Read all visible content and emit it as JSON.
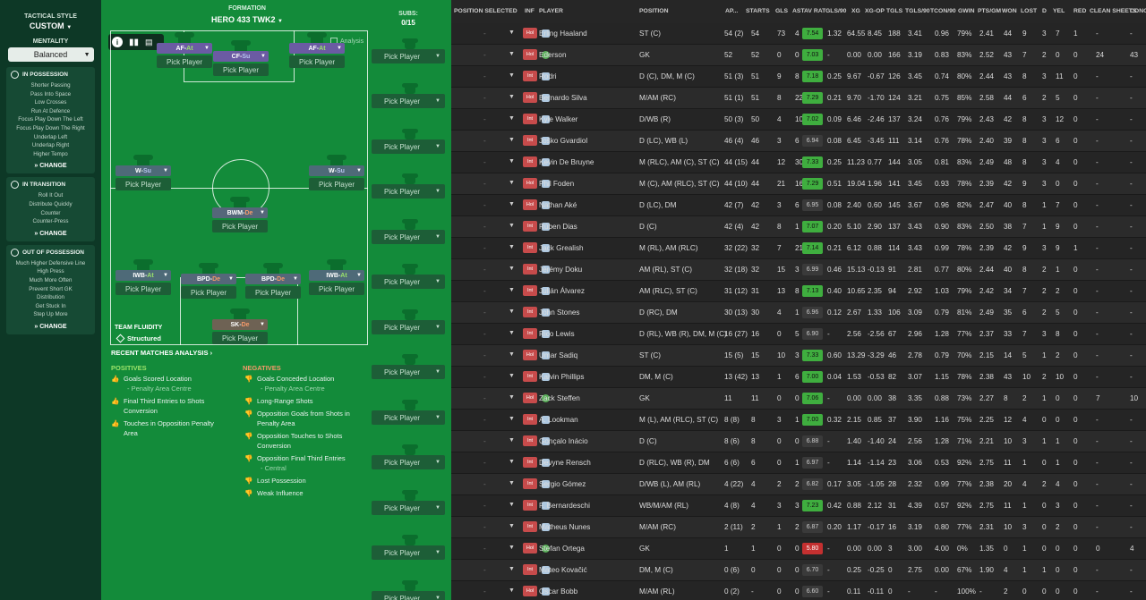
{
  "left": {
    "tactical_style_label": "TACTICAL STYLE",
    "tactical_style_value": "CUSTOM",
    "mentality_label": "MENTALITY",
    "mentality_value": "Balanced",
    "in_possession": {
      "title": "IN POSSESSION",
      "items": [
        "Shorter Passing",
        "Pass Into Space",
        "Low Crosses",
        "Run At Defence",
        "Focus Play Down The Left",
        "Focus Play Down The Right",
        "Underlap Left",
        "Underlap Right",
        "Higher Tempo"
      ],
      "change": "CHANGE"
    },
    "in_transition": {
      "title": "IN TRANSITION",
      "items": [
        "Roll It Out",
        "Distribute Quickly",
        "Counter",
        "Counter-Press"
      ],
      "change": "CHANGE"
    },
    "out_of_possession": {
      "title": "OUT OF POSSESSION",
      "items": [
        "Much Higher Defensive Line",
        "High Press",
        "Much More Often",
        "Prevent Short GK",
        "Distribution",
        "Get Stuck In",
        "Step Up More"
      ],
      "change": "CHANGE"
    }
  },
  "mid": {
    "formation_label": "FORMATION",
    "formation_value": "HERO 433 TWK2",
    "subs_label": "SUBS:",
    "subs_value": "0/15",
    "analysis_label": "Analysis",
    "pick_player": "Pick Player",
    "positions": [
      {
        "role": "AF",
        "duty": "At"
      },
      {
        "role": "CF",
        "duty": "Su"
      },
      {
        "role": "AF",
        "duty": "At"
      },
      {
        "role": "W",
        "duty": "Su"
      },
      {
        "role": "W",
        "duty": "Su"
      },
      {
        "role": "BWM",
        "duty": "De"
      },
      {
        "role": "IWB",
        "duty": "At"
      },
      {
        "role": "BPD",
        "duty": "De"
      },
      {
        "role": "BPD",
        "duty": "De"
      },
      {
        "role": "IWB",
        "duty": "At"
      },
      {
        "role": "SK",
        "duty": "De"
      }
    ],
    "team_fluidity_label": "TEAM FLUIDITY",
    "team_fluidity_value": "Structured",
    "recent_label": "RECENT MATCHES ANALYSIS",
    "positives_label": "POSITIVES",
    "negatives_label": "NEGATIVES",
    "positives": [
      {
        "text": "Goals Scored Location",
        "sub": "- Penalty Area Centre"
      },
      {
        "text": "Final Third Entries to Shots Conversion",
        "sub": ""
      },
      {
        "text": "Touches in Opposition Penalty Area",
        "sub": ""
      }
    ],
    "negatives": [
      {
        "text": "Goals Conceded Location",
        "sub": "- Penalty Area Centre"
      },
      {
        "text": "Long-Range Shots",
        "sub": ""
      },
      {
        "text": "Opposition Goals from Shots in Penalty Area",
        "sub": ""
      },
      {
        "text": "Opposition Touches to Shots Conversion",
        "sub": ""
      },
      {
        "text": "Opposition Final Third Entries",
        "sub": "- Central"
      },
      {
        "text": "Lost Possession",
        "sub": ""
      },
      {
        "text": "Weak Influence",
        "sub": ""
      }
    ]
  },
  "table": {
    "headers": [
      "POSITION SELECTED",
      "INF",
      "PLAYER",
      "POSITION",
      "AP...",
      "STARTS",
      "GLS",
      "AST",
      "AV RAT",
      "GLS/90",
      "XG",
      "XG-OP",
      "TGLS",
      "TGLS/90",
      "TCON/90",
      "GWIN",
      "PTS/GM",
      "WON",
      "LOST",
      "D",
      "YEL",
      "RED",
      "CLEAN SHEETS",
      "CONC"
    ],
    "rows": [
      {
        "inf": "Hol",
        "name": "Erling Haaland",
        "pos": "ST (C)",
        "ap": "54 (2)",
        "starts": "54",
        "gls": "73",
        "ast": "4",
        "avr": "7.54",
        "gls90": "1.32",
        "xg": "64.55",
        "xgop": "8.45",
        "tgls": "188",
        "tgls90": "3.41",
        "tcon": "0.96",
        "gwin": "79%",
        "pts": "2.41",
        "won": "44",
        "lost": "9",
        "d": "3",
        "yel": "7",
        "red": "1",
        "cs": "-",
        "conc": "-"
      },
      {
        "inf": "Hol",
        "name": "Ederson",
        "pos": "GK",
        "ap": "52",
        "starts": "52",
        "gls": "0",
        "ast": "0",
        "avr": "7.03",
        "gls90": "-",
        "xg": "0.00",
        "xgop": "0.00",
        "tgls": "166",
        "tgls90": "3.19",
        "tcon": "0.83",
        "gwin": "83%",
        "pts": "2.52",
        "won": "43",
        "lost": "7",
        "d": "2",
        "yel": "0",
        "red": "0",
        "cs": "24",
        "conc": "43"
      },
      {
        "inf": "Int",
        "name": "Rodri",
        "pos": "D (C), DM, M (C)",
        "ap": "51 (3)",
        "starts": "51",
        "gls": "9",
        "ast": "8",
        "avr": "7.18",
        "gls90": "0.25",
        "xg": "9.67",
        "xgop": "-0.67",
        "tgls": "126",
        "tgls90": "3.45",
        "tcon": "0.74",
        "gwin": "80%",
        "pts": "2.44",
        "won": "43",
        "lost": "8",
        "d": "3",
        "yel": "11",
        "red": "0",
        "cs": "-",
        "conc": "-"
      },
      {
        "inf": "Hol",
        "name": "Bernardo Silva",
        "pos": "M/AM (RC)",
        "ap": "51 (1)",
        "starts": "51",
        "gls": "8",
        "ast": "22",
        "avr": "7.29",
        "gls90": "0.21",
        "xg": "9.70",
        "xgop": "-1.70",
        "tgls": "124",
        "tgls90": "3.21",
        "tcon": "0.75",
        "gwin": "85%",
        "pts": "2.58",
        "won": "44",
        "lost": "6",
        "d": "2",
        "yel": "5",
        "red": "0",
        "cs": "-",
        "conc": "-"
      },
      {
        "inf": "Int",
        "name": "Kyle Walker",
        "pos": "D/WB (R)",
        "ap": "50 (3)",
        "starts": "50",
        "gls": "4",
        "ast": "10",
        "avr": "7.02",
        "gls90": "0.09",
        "xg": "6.46",
        "xgop": "-2.46",
        "tgls": "137",
        "tgls90": "3.24",
        "tcon": "0.76",
        "gwin": "79%",
        "pts": "2.43",
        "won": "42",
        "lost": "8",
        "d": "3",
        "yel": "12",
        "red": "0",
        "cs": "-",
        "conc": "-"
      },
      {
        "inf": "Int",
        "name": "Joško Gvardiol",
        "pos": "D (LC), WB (L)",
        "ap": "46 (4)",
        "starts": "46",
        "gls": "3",
        "ast": "6",
        "avr": "6.94",
        "gls90": "0.08",
        "xg": "6.45",
        "xgop": "-3.45",
        "tgls": "111",
        "tgls90": "3.14",
        "tcon": "0.76",
        "gwin": "78%",
        "pts": "2.40",
        "won": "39",
        "lost": "8",
        "d": "3",
        "yel": "6",
        "red": "0",
        "cs": "-",
        "conc": "-"
      },
      {
        "inf": "Int",
        "name": "Kevin De Bruyne",
        "pos": "M (RLC), AM (C), ST (C)",
        "ap": "44 (15)",
        "starts": "44",
        "gls": "12",
        "ast": "30",
        "avr": "7.33",
        "gls90": "0.25",
        "xg": "11.23",
        "xgop": "0.77",
        "tgls": "144",
        "tgls90": "3.05",
        "tcon": "0.81",
        "gwin": "83%",
        "pts": "2.49",
        "won": "48",
        "lost": "8",
        "d": "3",
        "yel": "4",
        "red": "0",
        "cs": "-",
        "conc": "-"
      },
      {
        "inf": "Hol",
        "name": "Phil Foden",
        "pos": "M (C), AM (RLC), ST (C)",
        "ap": "44 (10)",
        "starts": "44",
        "gls": "21",
        "ast": "16",
        "avr": "7.29",
        "gls90": "0.51",
        "xg": "19.04",
        "xgop": "1.96",
        "tgls": "141",
        "tgls90": "3.45",
        "tcon": "0.93",
        "gwin": "78%",
        "pts": "2.39",
        "won": "42",
        "lost": "9",
        "d": "3",
        "yel": "0",
        "red": "0",
        "cs": "-",
        "conc": "-"
      },
      {
        "inf": "Hol",
        "name": "Nathan Aké",
        "pos": "D (LC), DM",
        "ap": "42 (7)",
        "starts": "42",
        "gls": "3",
        "ast": "6",
        "avr": "6.95",
        "gls90": "0.08",
        "xg": "2.40",
        "xgop": "0.60",
        "tgls": "145",
        "tgls90": "3.67",
        "tcon": "0.96",
        "gwin": "82%",
        "pts": "2.47",
        "won": "40",
        "lost": "8",
        "d": "1",
        "yel": "7",
        "red": "0",
        "cs": "-",
        "conc": "-"
      },
      {
        "inf": "Int",
        "name": "Rúben Dias",
        "pos": "D (C)",
        "ap": "42 (4)",
        "starts": "42",
        "gls": "8",
        "ast": "1",
        "avr": "7.07",
        "gls90": "0.20",
        "xg": "5.10",
        "xgop": "2.90",
        "tgls": "137",
        "tgls90": "3.43",
        "tcon": "0.90",
        "gwin": "83%",
        "pts": "2.50",
        "won": "38",
        "lost": "7",
        "d": "1",
        "yel": "9",
        "red": "0",
        "cs": "-",
        "conc": "-"
      },
      {
        "inf": "Int",
        "name": "Jack Grealish",
        "pos": "M (RL), AM (RLC)",
        "ap": "32 (22)",
        "starts": "32",
        "gls": "7",
        "ast": "21",
        "avr": "7.14",
        "gls90": "0.21",
        "xg": "6.12",
        "xgop": "0.88",
        "tgls": "114",
        "tgls90": "3.43",
        "tcon": "0.99",
        "gwin": "78%",
        "pts": "2.39",
        "won": "42",
        "lost": "9",
        "d": "3",
        "yel": "9",
        "red": "1",
        "cs": "-",
        "conc": "-"
      },
      {
        "inf": "Int",
        "name": "Jérémy Doku",
        "pos": "AM (RL), ST (C)",
        "ap": "32 (18)",
        "starts": "32",
        "gls": "15",
        "ast": "3",
        "avr": "6.99",
        "gls90": "0.46",
        "xg": "15.13",
        "xgop": "-0.13",
        "tgls": "91",
        "tgls90": "2.81",
        "tcon": "0.77",
        "gwin": "80%",
        "pts": "2.44",
        "won": "40",
        "lost": "8",
        "d": "2",
        "yel": "1",
        "red": "0",
        "cs": "-",
        "conc": "-"
      },
      {
        "inf": "Int",
        "name": "Julián Álvarez",
        "pos": "AM (RLC), ST (C)",
        "ap": "31 (12)",
        "starts": "31",
        "gls": "13",
        "ast": "8",
        "avr": "7.13",
        "gls90": "0.40",
        "xg": "10.65",
        "xgop": "2.35",
        "tgls": "94",
        "tgls90": "2.92",
        "tcon": "1.03",
        "gwin": "79%",
        "pts": "2.42",
        "won": "34",
        "lost": "7",
        "d": "2",
        "yel": "2",
        "red": "0",
        "cs": "-",
        "conc": "-"
      },
      {
        "inf": "Int",
        "name": "John Stones",
        "pos": "D (RC), DM",
        "ap": "30 (13)",
        "starts": "30",
        "gls": "4",
        "ast": "1",
        "avr": "6.96",
        "gls90": "0.12",
        "xg": "2.67",
        "xgop": "1.33",
        "tgls": "106",
        "tgls90": "3.09",
        "tcon": "0.79",
        "gwin": "81%",
        "pts": "2.49",
        "won": "35",
        "lost": "6",
        "d": "2",
        "yel": "5",
        "red": "0",
        "cs": "-",
        "conc": "-"
      },
      {
        "inf": "Int",
        "name": "Rico Lewis",
        "pos": "D (RL), WB (R), DM, M (C)",
        "ap": "16 (27)",
        "starts": "16",
        "gls": "0",
        "ast": "5",
        "avr": "6.90",
        "gls90": "-",
        "xg": "2.56",
        "xgop": "-2.56",
        "tgls": "67",
        "tgls90": "2.96",
        "tcon": "1.28",
        "gwin": "77%",
        "pts": "2.37",
        "won": "33",
        "lost": "7",
        "d": "3",
        "yel": "8",
        "red": "0",
        "cs": "-",
        "conc": "-"
      },
      {
        "inf": "Hol",
        "name": "Umar Sadiq",
        "pos": "ST (C)",
        "ap": "15 (5)",
        "starts": "15",
        "gls": "10",
        "ast": "3",
        "avr": "7.33",
        "gls90": "0.60",
        "xg": "13.29",
        "xgop": "-3.29",
        "tgls": "46",
        "tgls90": "2.78",
        "tcon": "0.79",
        "gwin": "70%",
        "pts": "2.15",
        "won": "14",
        "lost": "5",
        "d": "1",
        "yel": "2",
        "red": "0",
        "cs": "-",
        "conc": "-"
      },
      {
        "inf": "Int",
        "name": "Kalvin Phillips",
        "pos": "DM, M (C)",
        "ap": "13 (42)",
        "starts": "13",
        "gls": "1",
        "ast": "6",
        "avr": "7.00",
        "gls90": "0.04",
        "xg": "1.53",
        "xgop": "-0.53",
        "tgls": "82",
        "tgls90": "3.07",
        "tcon": "1.15",
        "gwin": "78%",
        "pts": "2.38",
        "won": "43",
        "lost": "10",
        "d": "2",
        "yel": "10",
        "red": "0",
        "cs": "-",
        "conc": "-"
      },
      {
        "inf": "Hol",
        "name": "Zack Steffen",
        "pos": "GK",
        "ap": "11",
        "starts": "11",
        "gls": "0",
        "ast": "0",
        "avr": "7.06",
        "gls90": "-",
        "xg": "0.00",
        "xgop": "0.00",
        "tgls": "38",
        "tgls90": "3.35",
        "tcon": "0.88",
        "gwin": "73%",
        "pts": "2.27",
        "won": "8",
        "lost": "2",
        "d": "1",
        "yel": "0",
        "red": "0",
        "cs": "7",
        "conc": "10"
      },
      {
        "inf": "Int",
        "name": "A. Lookman",
        "pos": "M (L), AM (RLC), ST (C)",
        "ap": "8 (8)",
        "starts": "8",
        "gls": "3",
        "ast": "1",
        "avr": "7.00",
        "gls90": "0.32",
        "xg": "2.15",
        "xgop": "0.85",
        "tgls": "37",
        "tgls90": "3.90",
        "tcon": "1.16",
        "gwin": "75%",
        "pts": "2.25",
        "won": "12",
        "lost": "4",
        "d": "0",
        "yel": "0",
        "red": "0",
        "cs": "-",
        "conc": "-"
      },
      {
        "inf": "Int",
        "name": "Gonçalo Inácio",
        "pos": "D (C)",
        "ap": "8 (6)",
        "starts": "8",
        "gls": "0",
        "ast": "0",
        "avr": "6.88",
        "gls90": "-",
        "xg": "1.40",
        "xgop": "-1.40",
        "tgls": "24",
        "tgls90": "2.56",
        "tcon": "1.28",
        "gwin": "71%",
        "pts": "2.21",
        "won": "10",
        "lost": "3",
        "d": "1",
        "yel": "1",
        "red": "0",
        "cs": "-",
        "conc": "-"
      },
      {
        "inf": "Int",
        "name": "Devyne Rensch",
        "pos": "D (RLC), WB (R), DM",
        "ap": "6 (6)",
        "starts": "6",
        "gls": "0",
        "ast": "1",
        "avr": "6.97",
        "gls90": "-",
        "xg": "1.14",
        "xgop": "-1.14",
        "tgls": "23",
        "tgls90": "3.06",
        "tcon": "0.53",
        "gwin": "92%",
        "pts": "2.75",
        "won": "11",
        "lost": "1",
        "d": "0",
        "yel": "1",
        "red": "0",
        "cs": "-",
        "conc": "-"
      },
      {
        "inf": "Int",
        "name": "Sergio Gómez",
        "pos": "D/WB (L), AM (RL)",
        "ap": "4 (22)",
        "starts": "4",
        "gls": "2",
        "ast": "2",
        "avr": "6.82",
        "gls90": "0.17",
        "xg": "3.05",
        "xgop": "-1.05",
        "tgls": "28",
        "tgls90": "2.32",
        "tcon": "0.99",
        "gwin": "77%",
        "pts": "2.38",
        "won": "20",
        "lost": "4",
        "d": "2",
        "yel": "4",
        "red": "0",
        "cs": "-",
        "conc": "-"
      },
      {
        "inf": "Int",
        "name": "F. Bernardeschi",
        "pos": "WB/M/AM (RL)",
        "ap": "4 (8)",
        "starts": "4",
        "gls": "3",
        "ast": "3",
        "avr": "7.23",
        "gls90": "0.42",
        "xg": "0.88",
        "xgop": "2.12",
        "tgls": "31",
        "tgls90": "4.39",
        "tcon": "0.57",
        "gwin": "92%",
        "pts": "2.75",
        "won": "11",
        "lost": "1",
        "d": "0",
        "yel": "3",
        "red": "0",
        "cs": "-",
        "conc": "-"
      },
      {
        "inf": "Int",
        "name": "Matheus Nunes",
        "pos": "M/AM (RC)",
        "ap": "2 (11)",
        "starts": "2",
        "gls": "1",
        "ast": "2",
        "avr": "6.87",
        "gls90": "0.20",
        "xg": "1.17",
        "xgop": "-0.17",
        "tgls": "16",
        "tgls90": "3.19",
        "tcon": "0.80",
        "gwin": "77%",
        "pts": "2.31",
        "won": "10",
        "lost": "3",
        "d": "0",
        "yel": "2",
        "red": "0",
        "cs": "-",
        "conc": "-"
      },
      {
        "inf": "Hol",
        "name": "Stefan Ortega",
        "pos": "GK",
        "ap": "1",
        "starts": "1",
        "gls": "0",
        "ast": "0",
        "avr": "5.80",
        "gls90": "-",
        "xg": "0.00",
        "xgop": "0.00",
        "tgls": "3",
        "tgls90": "3.00",
        "tcon": "4.00",
        "gwin": "0%",
        "pts": "1.35",
        "won": "0",
        "lost": "1",
        "d": "0",
        "yel": "0",
        "red": "0",
        "cs": "0",
        "conc": "4"
      },
      {
        "inf": "Int",
        "name": "Mateo Kovačić",
        "pos": "DM, M (C)",
        "ap": "0 (6)",
        "starts": "0",
        "gls": "0",
        "ast": "0",
        "avr": "6.70",
        "gls90": "-",
        "xg": "0.25",
        "xgop": "-0.25",
        "tgls": "0",
        "tgls90": "2.75",
        "tcon": "0.00",
        "gwin": "67%",
        "pts": "1.90",
        "won": "4",
        "lost": "1",
        "d": "1",
        "yel": "0",
        "red": "0",
        "cs": "-",
        "conc": "-"
      },
      {
        "inf": "Hol",
        "name": "Oscar Bobb",
        "pos": "M/AM (RL)",
        "ap": "0 (2)",
        "starts": "-",
        "gls": "0",
        "ast": "0",
        "avr": "6.60",
        "gls90": "-",
        "xg": "0.11",
        "xgop": "-0.11",
        "tgls": "0",
        "tgls90": "-",
        "tcon": "-",
        "gwin": "100%",
        "pts": "-",
        "won": "2",
        "lost": "0",
        "d": "0",
        "yel": "0",
        "red": "0",
        "cs": "-",
        "conc": "-"
      }
    ]
  }
}
